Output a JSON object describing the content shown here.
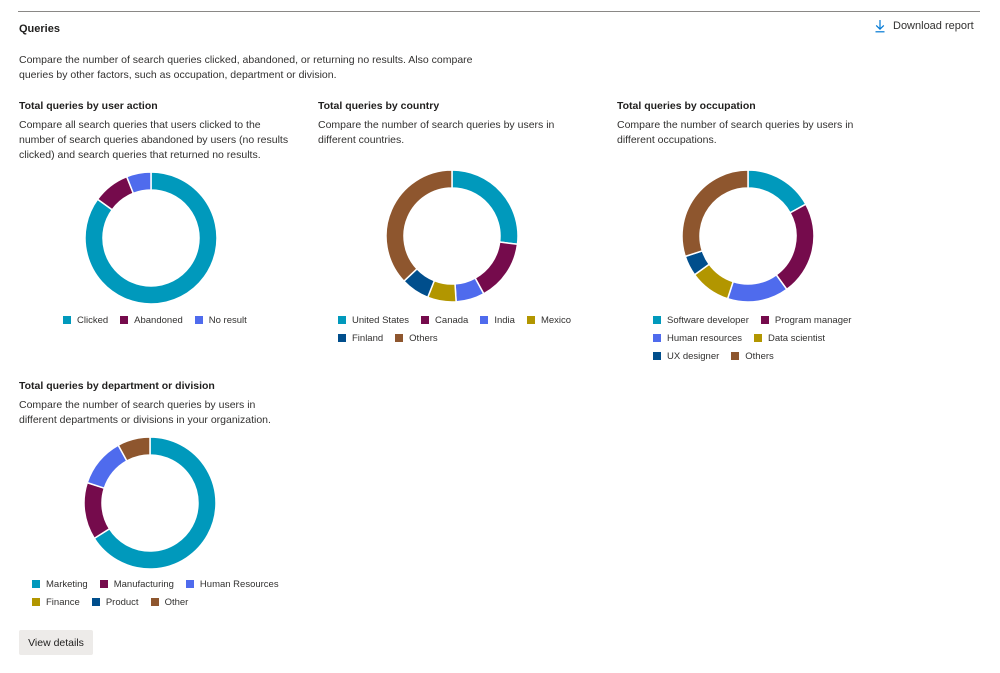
{
  "section": {
    "title": "Queries",
    "description": "Compare the number of search queries clicked, abandoned, or returning no results. Also compare queries by other factors, such as occupation, department or division.",
    "download_label": "Download report"
  },
  "view_details_label": "View details",
  "colors": {
    "teal": "#0099bc",
    "maroon": "#750b4c",
    "blue": "#4f6bed",
    "gold": "#b29600",
    "navy": "#004e8c",
    "brown": "#8e562e"
  },
  "chart_data": [
    {
      "id": "user-action",
      "type": "pie",
      "title": "Total queries by user action",
      "description": "Compare all search queries that users clicked to the number of search queries abandoned by users (no results clicked) and search queries that returned no results.",
      "categories": [
        "Clicked",
        "Abandoned",
        "No result"
      ],
      "values": [
        85,
        9,
        6
      ],
      "colors": [
        "#0099bc",
        "#750b4c",
        "#4f6bed"
      ]
    },
    {
      "id": "country",
      "type": "pie",
      "title": "Total queries by country",
      "description": "Compare the number of search queries by users in different countries.",
      "categories": [
        "United States",
        "Canada",
        "India",
        "Mexico",
        "Finland",
        "Others"
      ],
      "values": [
        27,
        15,
        7,
        7,
        7,
        37
      ],
      "colors": [
        "#0099bc",
        "#750b4c",
        "#4f6bed",
        "#b29600",
        "#004e8c",
        "#8e562e"
      ]
    },
    {
      "id": "occupation",
      "type": "pie",
      "title": "Total queries by occupation",
      "description": "Compare the number of search queries by users in different occupations.",
      "categories": [
        "Software developer",
        "Program manager",
        "Human resources",
        "Data scientist",
        "UX designer",
        "Others"
      ],
      "values": [
        17,
        23,
        15,
        10,
        5,
        30
      ],
      "colors": [
        "#0099bc",
        "#750b4c",
        "#4f6bed",
        "#b29600",
        "#004e8c",
        "#8e562e"
      ]
    },
    {
      "id": "department",
      "type": "pie",
      "title": "Total queries by department or division",
      "description": "Compare the number of search queries by users in different departments or divisions in your organization.",
      "categories": [
        "Marketing",
        "Manufacturing",
        "Human Resources",
        "Finance",
        "Product",
        "Other"
      ],
      "values": [
        66,
        14,
        12,
        0,
        0,
        8
      ],
      "colors": [
        "#0099bc",
        "#750b4c",
        "#4f6bed",
        "#b29600",
        "#004e8c",
        "#8e562e"
      ]
    }
  ]
}
